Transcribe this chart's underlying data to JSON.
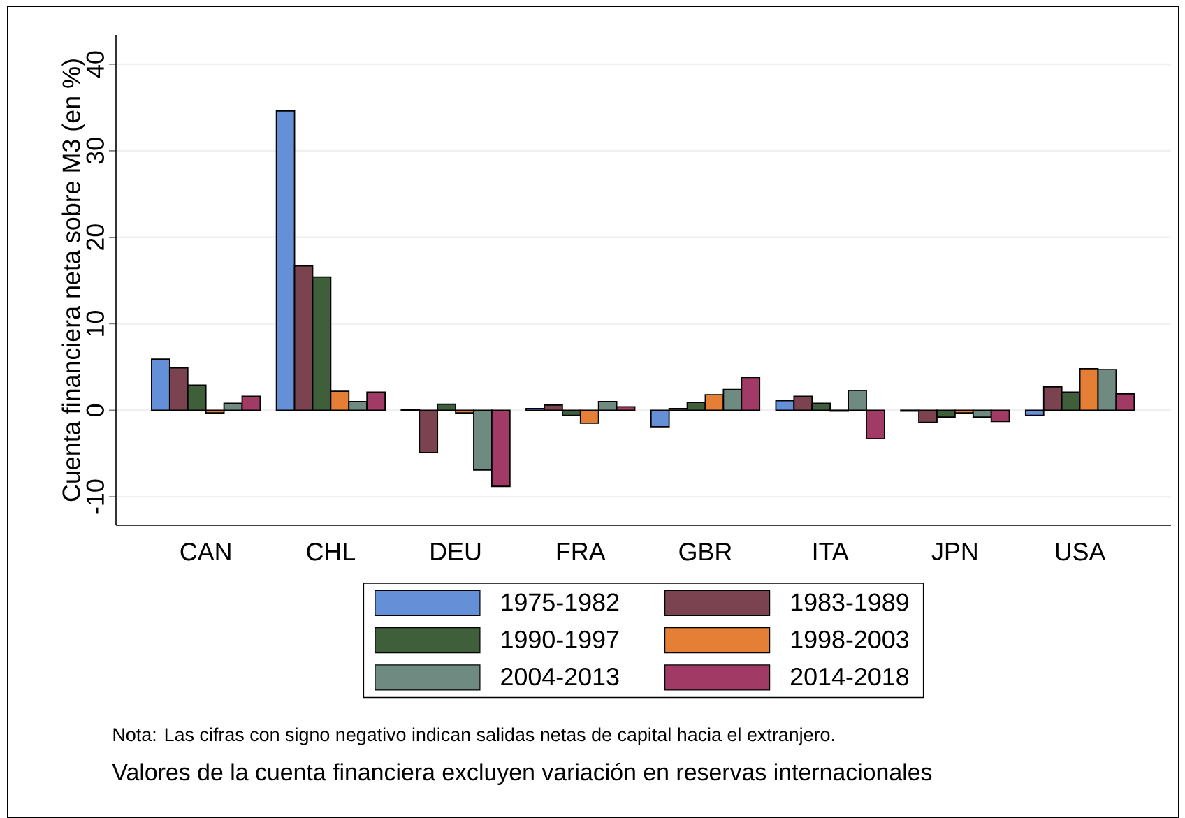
{
  "chart_data": {
    "type": "bar",
    "ylabel": "Cuenta financiera neta sobre M3 (en %)",
    "categories": [
      "CAN",
      "CHL",
      "DEU",
      "FRA",
      "GBR",
      "ITA",
      "JPN",
      "USA"
    ],
    "series": [
      {
        "name": "1975-1982",
        "color": "#6590d8",
        "values": [
          5.9,
          34.6,
          0.1,
          0.2,
          -1.9,
          1.1,
          -0.1,
          -0.6
        ]
      },
      {
        "name": "1983-1989",
        "color": "#7b4250",
        "values": [
          4.9,
          16.7,
          -4.9,
          0.6,
          0.2,
          1.6,
          -1.4,
          2.7
        ]
      },
      {
        "name": "1990-1997",
        "color": "#3f5f3a",
        "values": [
          2.9,
          15.4,
          0.7,
          -0.6,
          0.9,
          0.8,
          -0.8,
          2.1
        ]
      },
      {
        "name": "1998-2003",
        "color": "#e57f36",
        "values": [
          -0.3,
          2.2,
          -0.3,
          -1.5,
          1.8,
          -0.1,
          -0.3,
          4.8
        ]
      },
      {
        "name": "2004-2013",
        "color": "#6f8a80",
        "values": [
          0.8,
          1.0,
          -6.9,
          1.0,
          2.4,
          2.3,
          -0.8,
          4.7
        ]
      },
      {
        "name": "2014-2018",
        "color": "#a13a65",
        "values": [
          1.6,
          2.1,
          -8.8,
          0.4,
          3.8,
          -3.3,
          -1.3,
          1.9
        ]
      }
    ],
    "ylim": [
      -13.3,
      43.4
    ],
    "yticks": [
      -10,
      0,
      10,
      20,
      30,
      40
    ],
    "grid": "y",
    "legend": "bottom",
    "annotations": [
      "Nota: Las cifras con signo negativo indican salidas netas de capital hacia el extranjero.",
      "Valores de la cuenta financiera excluyen variación en reservas internacionales"
    ]
  }
}
